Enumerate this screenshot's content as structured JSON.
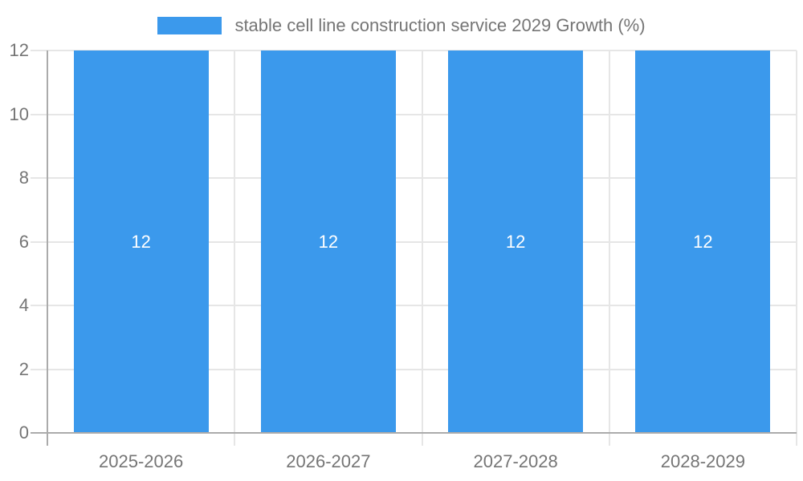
{
  "chart_data": {
    "type": "bar",
    "title": "",
    "legend_entries": [
      {
        "label": "stable cell line construction service 2029 Growth (%)",
        "color": "#3B99EC"
      }
    ],
    "legend_position": "top-center",
    "categories": [
      "2025-2026",
      "2026-2027",
      "2027-2028",
      "2028-2029"
    ],
    "series": [
      {
        "name": "stable cell line construction service 2029 Growth (%)",
        "values": [
          12,
          12,
          12,
          12
        ],
        "bar_labels": [
          "12",
          "12",
          "12",
          "12"
        ]
      }
    ],
    "xlabel": "",
    "ylabel": "",
    "ylim": [
      0,
      12
    ],
    "yticks": [
      0,
      2,
      4,
      6,
      8,
      10,
      12
    ],
    "grid": true,
    "colors": {
      "bar": "#3B99EC",
      "bar_label_text": "#ffffff",
      "axis_text": "#757575",
      "legend_text": "#757575",
      "gridline": "#e6e6e6",
      "axis_line": "#ababab",
      "background": "#ffffff"
    }
  }
}
